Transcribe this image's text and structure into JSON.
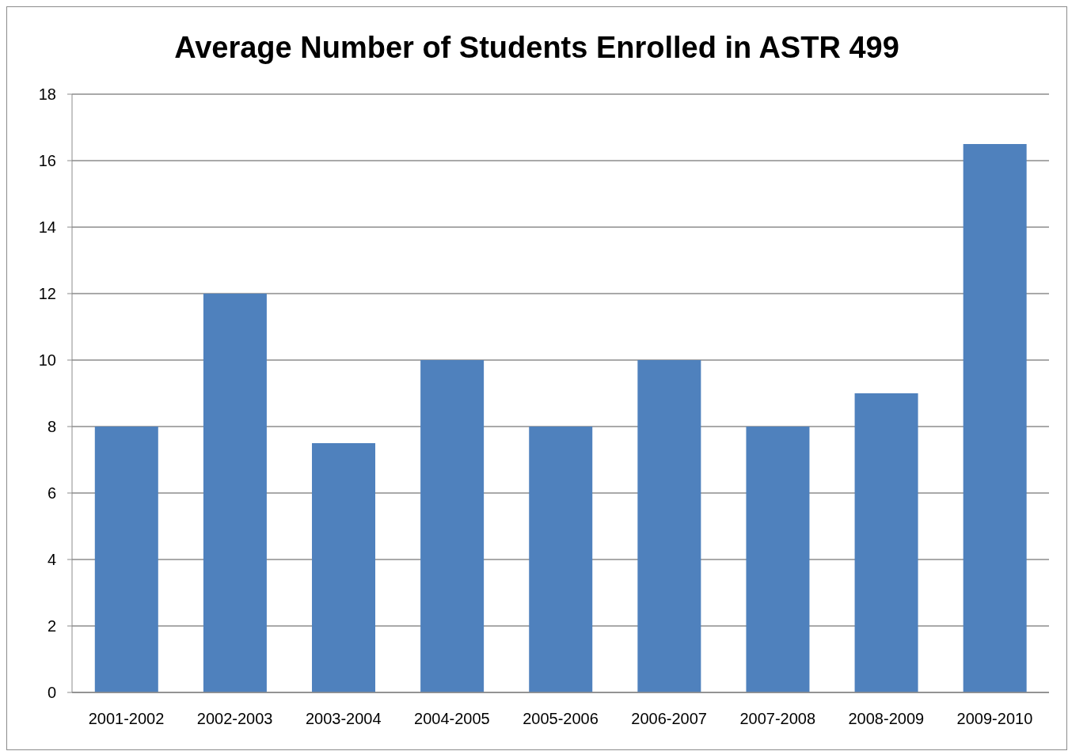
{
  "chart_data": {
    "type": "bar",
    "title": "Average Number of Students Enrolled in ASTR 499",
    "categories": [
      "2001-2002",
      "2002-2003",
      "2003-2004",
      "2004-2005",
      "2005-2006",
      "2006-2007",
      "2007-2008",
      "2008-2009",
      "2009-2010"
    ],
    "values": [
      8,
      12,
      7.5,
      10,
      8,
      10,
      8,
      9,
      16.5
    ],
    "color": "#4f81bd",
    "ylim": [
      0,
      18
    ],
    "yticks": [
      0,
      2,
      4,
      6,
      8,
      10,
      12,
      14,
      16,
      18
    ],
    "grid": "y"
  }
}
